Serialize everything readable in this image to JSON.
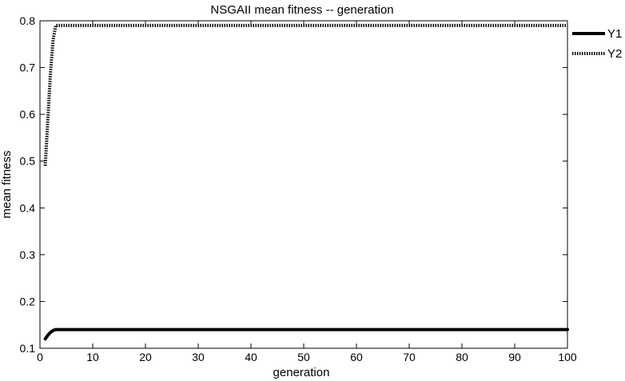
{
  "chart_data": {
    "type": "line",
    "title": "NSGAII mean fitness -- generation",
    "xlabel": "generation",
    "ylabel": "mean fitness",
    "xlim": [
      0,
      100
    ],
    "ylim": [
      0.1,
      0.8
    ],
    "xticks": [
      0,
      10,
      20,
      30,
      40,
      50,
      60,
      70,
      80,
      90,
      100
    ],
    "yticks": [
      0.1,
      0.2,
      0.3,
      0.4,
      0.5,
      0.6,
      0.7,
      0.8
    ],
    "xtick_labels": [
      "0",
      "10",
      "20",
      "30",
      "40",
      "50",
      "60",
      "70",
      "80",
      "90",
      "100"
    ],
    "ytick_labels": [
      "0.1",
      "0.2",
      "0.3",
      "0.4",
      "0.5",
      "0.6",
      "0.7",
      "0.8"
    ],
    "grid": false,
    "legend_position": "top-right",
    "series": [
      {
        "name": "Y1",
        "style": "solid",
        "color": "#000000",
        "x": [
          1,
          1.5,
          2,
          2.5,
          3,
          100
        ],
        "y": [
          0.12,
          0.128,
          0.134,
          0.138,
          0.14,
          0.14
        ]
      },
      {
        "name": "Y2",
        "style": "dotted",
        "color": "#000000",
        "x": [
          1,
          1.5,
          2,
          2.5,
          3,
          100
        ],
        "y": [
          0.49,
          0.59,
          0.69,
          0.76,
          0.79,
          0.79
        ]
      }
    ]
  }
}
